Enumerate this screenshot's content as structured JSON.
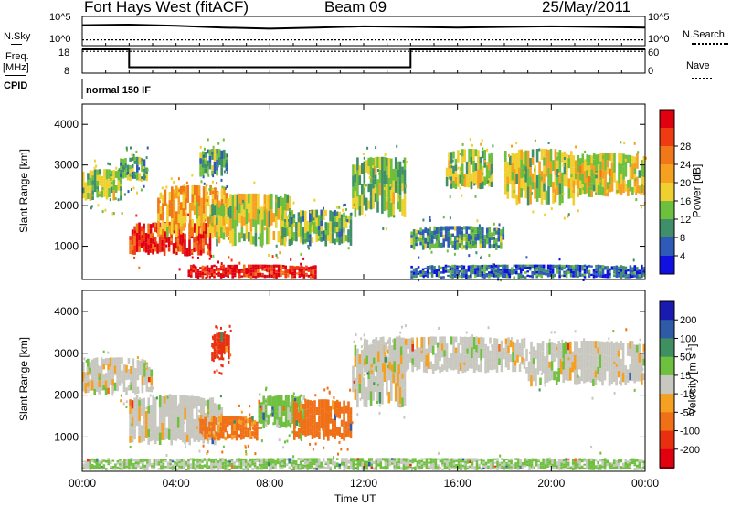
{
  "header": {
    "station": "Fort Hays West (fitACF)",
    "beam": "Beam 09",
    "date": "25/May/2011"
  },
  "strip_labels": {
    "nsky": "N.Sky",
    "nsearch": "N.Search",
    "freq": "Freq.",
    "freq_unit": "[MHz]",
    "nave": "Nave",
    "cpid": "CPID",
    "mode": "normal 150 IF",
    "noise_tick_top": "10^5",
    "noise_tick_bottom": "10^0",
    "freq_tick_top": "18",
    "freq_tick_bottom": "8",
    "nave_tick_top": "60",
    "nave_tick_bottom": "0"
  },
  "time_axis": {
    "label": "Time UT",
    "ticks": [
      "00:00",
      "04:00",
      "08:00",
      "12:00",
      "16:00",
      "20:00",
      "00:00"
    ]
  },
  "power_colorbar": {
    "label": "Power [dB]",
    "ticks": [
      "4",
      "8",
      "12",
      "16",
      "20",
      "24",
      "28"
    ],
    "colors": [
      "#1010e0",
      "#2f5ab8",
      "#3f8f6a",
      "#6fbf3f",
      "#f0d030",
      "#f6a020",
      "#f07818",
      "#ef3a12",
      "#e00010"
    ]
  },
  "velocity_colorbar": {
    "label": "Velocity [m s",
    "label_sup": "-1",
    "label_end": "]",
    "ticks": [
      "200",
      "100",
      "50",
      "15",
      "-15",
      "-50",
      "-100",
      "-200"
    ],
    "colors": [
      "#1a1ab0",
      "#2f5aa8",
      "#3f9060",
      "#70c040",
      "#c8c8c0",
      "#f5a020",
      "#f07018",
      "#e83010",
      "#e00010"
    ]
  },
  "chart_data": [
    {
      "type": "heatmap",
      "name": "power",
      "xlabel": "Time UT",
      "ylabel": "Slant Range [km]",
      "xlim": [
        0,
        24
      ],
      "ylim": [
        180,
        4500
      ],
      "yticks": [
        1000,
        2000,
        3000,
        4000
      ],
      "regions": [
        {
          "t": [
            0.0,
            1.7
          ],
          "r": [
            2100,
            2900
          ],
          "db": 12
        },
        {
          "t": [
            1.6,
            2.8
          ],
          "r": [
            2600,
            3200
          ],
          "db": 10
        },
        {
          "t": [
            2.0,
            5.5
          ],
          "r": [
            750,
            1600
          ],
          "db": 26
        },
        {
          "t": [
            3.2,
            6.2
          ],
          "r": [
            1200,
            2500
          ],
          "db": 18
        },
        {
          "t": [
            5.0,
            6.2
          ],
          "r": [
            2700,
            3400
          ],
          "db": 9
        },
        {
          "t": [
            5.5,
            9.0
          ],
          "r": [
            1000,
            2300
          ],
          "db": 14
        },
        {
          "t": [
            8.5,
            11.5
          ],
          "r": [
            1000,
            1900
          ],
          "db": 11
        },
        {
          "t": [
            4.5,
            10.0
          ],
          "r": [
            200,
            550
          ],
          "db": 27
        },
        {
          "t": [
            11.5,
            13.8
          ],
          "r": [
            1700,
            3200
          ],
          "db": 12
        },
        {
          "t": [
            14.0,
            18.0
          ],
          "r": [
            900,
            1500
          ],
          "db": 9
        },
        {
          "t": [
            15.5,
            17.5
          ],
          "r": [
            2400,
            3400
          ],
          "db": 13
        },
        {
          "t": [
            18.0,
            21.0
          ],
          "r": [
            2000,
            3400
          ],
          "db": 14
        },
        {
          "t": [
            21.0,
            24.0
          ],
          "r": [
            2200,
            3300
          ],
          "db": 15
        },
        {
          "t": [
            14.0,
            24.0
          ],
          "r": [
            200,
            550
          ],
          "db": 6
        }
      ]
    },
    {
      "type": "heatmap",
      "name": "velocity",
      "xlabel": "Time UT",
      "ylabel": "Slant Range [km]",
      "xlim": [
        0,
        24
      ],
      "ylim": [
        180,
        4500
      ],
      "yticks": [
        1000,
        2000,
        3000,
        4000
      ],
      "regions": [
        {
          "t": [
            0.0,
            3.0
          ],
          "r": [
            2000,
            2900
          ],
          "v": 0
        },
        {
          "t": [
            2.0,
            6.0
          ],
          "r": [
            800,
            2000
          ],
          "v": 0
        },
        {
          "t": [
            5.5,
            6.3
          ],
          "r": [
            2800,
            3500
          ],
          "v": -150
        },
        {
          "t": [
            5.0,
            7.5
          ],
          "r": [
            900,
            1500
          ],
          "v": -60
        },
        {
          "t": [
            7.5,
            9.5
          ],
          "r": [
            1200,
            2000
          ],
          "v": 30
        },
        {
          "t": [
            9.0,
            11.5
          ],
          "r": [
            900,
            1900
          ],
          "v": -70
        },
        {
          "t": [
            11.5,
            13.8
          ],
          "r": [
            1700,
            3200
          ],
          "v": 0
        },
        {
          "t": [
            12.0,
            19.0
          ],
          "r": [
            2500,
            3400
          ],
          "v": 0
        },
        {
          "t": [
            19.0,
            24.0
          ],
          "r": [
            2200,
            3300
          ],
          "v": 0
        },
        {
          "t": [
            0.0,
            24.0
          ],
          "r": [
            200,
            500
          ],
          "v": 20
        }
      ]
    },
    {
      "type": "line",
      "name": "noise",
      "series": [
        {
          "x": [
            0,
            2,
            4,
            6,
            8,
            10,
            12,
            14,
            16,
            18,
            20,
            22,
            24
          ],
          "y": [
            0.7,
            0.72,
            0.68,
            0.62,
            0.58,
            0.62,
            0.66,
            0.64,
            0.62,
            0.64,
            0.66,
            0.64,
            0.62
          ]
        },
        {
          "x": [
            0,
            24
          ],
          "y": [
            0.2,
            0.2
          ]
        }
      ]
    },
    {
      "type": "line",
      "name": "frequency",
      "series": [
        {
          "x": [
            0,
            2.0,
            2.0,
            14.0,
            14.0,
            24
          ],
          "y": [
            18,
            18,
            10.5,
            10.5,
            18,
            18
          ]
        },
        {
          "x": [
            0,
            24
          ],
          "y": [
            55,
            55
          ]
        }
      ]
    }
  ]
}
